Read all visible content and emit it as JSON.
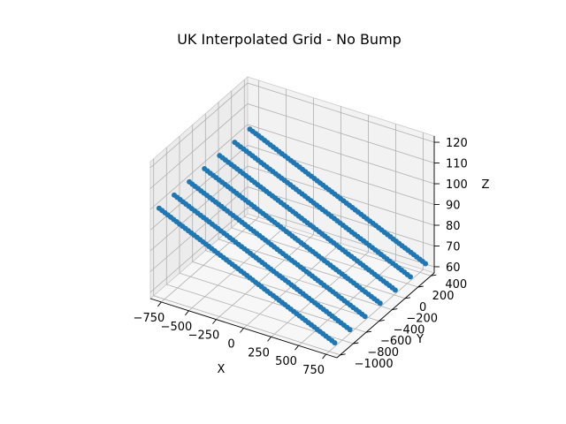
{
  "chart_data": {
    "type": "scatter",
    "projection": "3d",
    "title": "UK Interpolated Grid - No Bump",
    "xlabel": "X",
    "ylabel": "Y",
    "zlabel": "Z",
    "xticks": [
      -750,
      -500,
      -250,
      0,
      250,
      500,
      750
    ],
    "yticks": [
      -1000,
      -800,
      -600,
      -400,
      -200,
      0,
      200,
      400
    ],
    "zticks": [
      60,
      70,
      80,
      90,
      100,
      110,
      120
    ],
    "tick_labels": {
      "x": [
        "−750",
        "−500",
        "−250",
        "0",
        "250",
        "500",
        "750"
      ],
      "y": [
        "−1000",
        "−800",
        "−600",
        "−400",
        "−200",
        "0",
        "200",
        "400"
      ],
      "z": [
        "60",
        "70",
        "80",
        "90",
        "100",
        "110",
        "120"
      ]
    },
    "xlim": [
      -850,
      850
    ],
    "ylim": [
      -1050,
      450
    ],
    "zlim": [
      57,
      123
    ],
    "grid": true,
    "series": [
      {
        "color": "#1f77b4",
        "marker": "o",
        "x_range": [
          -800,
          800
        ],
        "y_range": [
          -1000,
          400
        ],
        "z_start": 100,
        "z_end": 62
      }
    ]
  }
}
